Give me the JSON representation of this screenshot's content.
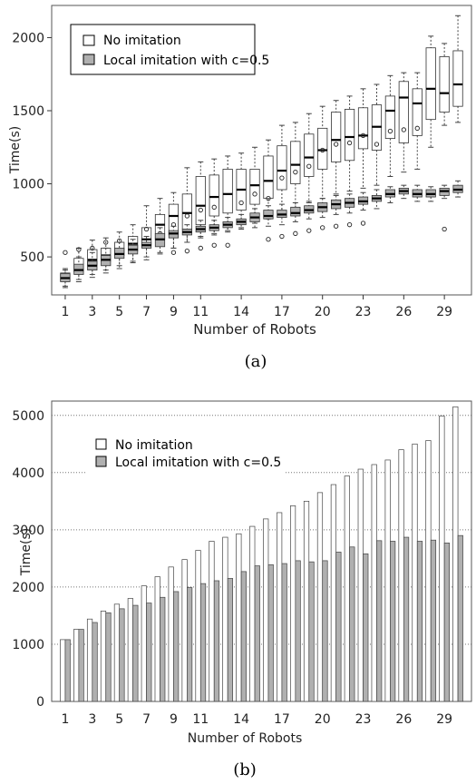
{
  "chart_data": [
    {
      "type": "box",
      "caption": "(a)",
      "xlabel": "Number of Robots",
      "ylabel": "Time(s)",
      "xlim": [
        0,
        31
      ],
      "ylim": [
        240,
        2220
      ],
      "x_ticks": [
        1,
        3,
        5,
        7,
        9,
        11,
        14,
        17,
        20,
        23,
        26,
        29
      ],
      "y_ticks": [
        500,
        1000,
        1500,
        2000
      ],
      "legend_position": "top-left",
      "series": [
        {
          "name": "No imitation",
          "color": "#ffffff",
          "boxes": [
            {
              "x": 1,
              "wlo": 300,
              "q1": 335,
              "med": 360,
              "q3": 390,
              "whi": 420
            },
            {
              "x": 2,
              "wlo": 345,
              "q1": 400,
              "med": 440,
              "q3": 490,
              "whi": 560
            },
            {
              "x": 3,
              "wlo": 380,
              "q1": 440,
              "med": 480,
              "q3": 550,
              "whi": 615
            },
            {
              "x": 4,
              "wlo": 410,
              "q1": 470,
              "med": 510,
              "q3": 560,
              "whi": 630
            },
            {
              "x": 5,
              "wlo": 440,
              "q1": 510,
              "med": 550,
              "q3": 600,
              "whi": 670
            },
            {
              "x": 6,
              "wlo": 470,
              "q1": 540,
              "med": 590,
              "q3": 640,
              "whi": 720
            },
            {
              "x": 7,
              "wlo": 500,
              "q1": 580,
              "med": 620,
              "q3": 700,
              "whi": 850
            },
            {
              "x": 8,
              "wlo": 530,
              "q1": 620,
              "med": 720,
              "q3": 790,
              "whi": 900
            },
            {
              "x": 9,
              "wlo": 560,
              "q1": 650,
              "med": 780,
              "q3": 860,
              "whi": 940
            },
            {
              "x": 10,
              "wlo": 600,
              "q1": 690,
              "med": 800,
              "q3": 930,
              "whi": 1110
            },
            {
              "x": 11,
              "wlo": 640,
              "q1": 720,
              "med": 850,
              "q3": 1050,
              "whi": 1150
            },
            {
              "x": 12,
              "wlo": 660,
              "q1": 780,
              "med": 910,
              "q3": 1060,
              "whi": 1170
            },
            {
              "x": 13,
              "wlo": 680,
              "q1": 800,
              "med": 930,
              "q3": 1100,
              "whi": 1190
            },
            {
              "x": 14,
              "wlo": 700,
              "q1": 820,
              "med": 960,
              "q3": 1100,
              "whi": 1210
            },
            {
              "x": 15,
              "wlo": 730,
              "q1": 860,
              "med": 990,
              "q3": 1100,
              "whi": 1250
            },
            {
              "x": 16,
              "wlo": 760,
              "q1": 900,
              "med": 1020,
              "q3": 1190,
              "whi": 1300
            },
            {
              "x": 17,
              "wlo": 800,
              "q1": 960,
              "med": 1090,
              "q3": 1260,
              "whi": 1400
            },
            {
              "x": 18,
              "wlo": 830,
              "q1": 1000,
              "med": 1130,
              "q3": 1290,
              "whi": 1420
            },
            {
              "x": 19,
              "wlo": 870,
              "q1": 1050,
              "med": 1180,
              "q3": 1340,
              "whi": 1480
            },
            {
              "x": 20,
              "wlo": 900,
              "q1": 1100,
              "med": 1230,
              "q3": 1380,
              "whi": 1530
            },
            {
              "x": 21,
              "wlo": 930,
              "q1": 1150,
              "med": 1300,
              "q3": 1490,
              "whi": 1570
            },
            {
              "x": 22,
              "wlo": 950,
              "q1": 1160,
              "med": 1320,
              "q3": 1510,
              "whi": 1600
            },
            {
              "x": 23,
              "wlo": 970,
              "q1": 1240,
              "med": 1330,
              "q3": 1520,
              "whi": 1650
            },
            {
              "x": 24,
              "wlo": 990,
              "q1": 1230,
              "med": 1390,
              "q3": 1540,
              "whi": 1680
            },
            {
              "x": 25,
              "wlo": 1050,
              "q1": 1310,
              "med": 1500,
              "q3": 1600,
              "whi": 1740
            },
            {
              "x": 26,
              "wlo": 1080,
              "q1": 1280,
              "med": 1590,
              "q3": 1700,
              "whi": 1760
            },
            {
              "x": 27,
              "wlo": 1100,
              "q1": 1330,
              "med": 1550,
              "q3": 1650,
              "whi": 1760
            },
            {
              "x": 28,
              "wlo": 1250,
              "q1": 1440,
              "med": 1650,
              "q3": 1930,
              "whi": 2010
            },
            {
              "x": 29,
              "wlo": 1400,
              "q1": 1490,
              "med": 1620,
              "q3": 1870,
              "whi": 1960
            },
            {
              "x": 30,
              "wlo": 1420,
              "q1": 1530,
              "med": 1680,
              "q3": 1910,
              "whi": 2150
            }
          ],
          "outliers": [
            [
              1,
              530
            ],
            [
              2,
              550
            ],
            [
              3,
              560
            ],
            [
              4,
              600
            ],
            [
              5,
              610
            ],
            [
              7,
              690
            ],
            [
              8,
              660
            ],
            [
              9,
              720
            ],
            [
              10,
              780
            ],
            [
              11,
              820
            ],
            [
              12,
              840
            ],
            [
              14,
              870
            ],
            [
              15,
              930
            ],
            [
              16,
              900
            ],
            [
              17,
              1040
            ],
            [
              18,
              1080
            ],
            [
              19,
              1120
            ],
            [
              20,
              1230
            ],
            [
              21,
              1270
            ],
            [
              22,
              1280
            ],
            [
              23,
              1330
            ],
            [
              24,
              1270
            ],
            [
              25,
              1360
            ],
            [
              26,
              1370
            ],
            [
              27,
              1380
            ]
          ]
        },
        {
          "name": "Local imitation with c=0.5",
          "color": "#b0b0b0",
          "boxes": [
            {
              "x": 1,
              "wlo": 290,
              "q1": 330,
              "med": 355,
              "q3": 385,
              "whi": 410
            },
            {
              "x": 2,
              "wlo": 330,
              "q1": 380,
              "med": 410,
              "q3": 450,
              "whi": 500
            },
            {
              "x": 3,
              "wlo": 360,
              "q1": 410,
              "med": 440,
              "q3": 470,
              "whi": 530
            },
            {
              "x": 4,
              "wlo": 390,
              "q1": 440,
              "med": 480,
              "q3": 510,
              "whi": 560
            },
            {
              "x": 5,
              "wlo": 420,
              "q1": 490,
              "med": 520,
              "q3": 560,
              "whi": 600
            },
            {
              "x": 6,
              "wlo": 460,
              "q1": 520,
              "med": 550,
              "q3": 580,
              "whi": 620
            },
            {
              "x": 7,
              "wlo": 480,
              "q1": 560,
              "med": 580,
              "q3": 600,
              "whi": 640
            },
            {
              "x": 8,
              "wlo": 520,
              "q1": 570,
              "med": 620,
              "q3": 660,
              "whi": 700
            },
            {
              "x": 9,
              "wlo": 560,
              "q1": 630,
              "med": 660,
              "q3": 680,
              "whi": 710
            },
            {
              "x": 10,
              "wlo": 600,
              "q1": 650,
              "med": 670,
              "q3": 690,
              "whi": 720
            },
            {
              "x": 11,
              "wlo": 630,
              "q1": 670,
              "med": 690,
              "q3": 710,
              "whi": 750
            },
            {
              "x": 12,
              "wlo": 650,
              "q1": 680,
              "med": 700,
              "q3": 720,
              "whi": 750
            },
            {
              "x": 13,
              "wlo": 670,
              "q1": 700,
              "med": 720,
              "q3": 740,
              "whi": 770
            },
            {
              "x": 14,
              "wlo": 690,
              "q1": 720,
              "med": 740,
              "q3": 760,
              "whi": 790
            },
            {
              "x": 15,
              "wlo": 700,
              "q1": 740,
              "med": 770,
              "q3": 800,
              "whi": 830
            },
            {
              "x": 16,
              "wlo": 710,
              "q1": 760,
              "med": 780,
              "q3": 820,
              "whi": 850
            },
            {
              "x": 17,
              "wlo": 720,
              "q1": 770,
              "med": 790,
              "q3": 820,
              "whi": 860
            },
            {
              "x": 18,
              "wlo": 740,
              "q1": 780,
              "med": 800,
              "q3": 840,
              "whi": 870
            },
            {
              "x": 19,
              "wlo": 760,
              "q1": 800,
              "med": 820,
              "q3": 850,
              "whi": 880
            },
            {
              "x": 20,
              "wlo": 770,
              "q1": 810,
              "med": 840,
              "q3": 870,
              "whi": 900
            },
            {
              "x": 21,
              "wlo": 790,
              "q1": 830,
              "med": 860,
              "q3": 890,
              "whi": 920
            },
            {
              "x": 22,
              "wlo": 800,
              "q1": 840,
              "med": 870,
              "q3": 900,
              "whi": 930
            },
            {
              "x": 23,
              "wlo": 820,
              "q1": 860,
              "med": 880,
              "q3": 910,
              "whi": 940
            },
            {
              "x": 24,
              "wlo": 830,
              "q1": 880,
              "med": 900,
              "q3": 920,
              "whi": 960
            },
            {
              "x": 25,
              "wlo": 870,
              "q1": 910,
              "med": 930,
              "q3": 960,
              "whi": 980
            },
            {
              "x": 26,
              "wlo": 900,
              "q1": 930,
              "med": 950,
              "q3": 970,
              "whi": 990
            },
            {
              "x": 27,
              "wlo": 880,
              "q1": 910,
              "med": 930,
              "q3": 960,
              "whi": 990
            },
            {
              "x": 28,
              "wlo": 880,
              "q1": 910,
              "med": 930,
              "q3": 960,
              "whi": 980
            },
            {
              "x": 29,
              "wlo": 900,
              "q1": 920,
              "med": 950,
              "q3": 970,
              "whi": 990
            },
            {
              "x": 30,
              "wlo": 910,
              "q1": 940,
              "med": 960,
              "q3": 990,
              "whi": 1020
            }
          ],
          "outliers": [
            [
              9,
              530
            ],
            [
              10,
              540
            ],
            [
              11,
              560
            ],
            [
              12,
              580
            ],
            [
              13,
              580
            ],
            [
              16,
              620
            ],
            [
              17,
              640
            ],
            [
              18,
              660
            ],
            [
              19,
              680
            ],
            [
              20,
              700
            ],
            [
              21,
              710
            ],
            [
              22,
              720
            ],
            [
              23,
              730
            ],
            [
              29,
              690
            ]
          ]
        }
      ]
    },
    {
      "type": "bar",
      "caption": "(b)",
      "xlabel": "Number of Robots",
      "ylabel": "Time(s)",
      "xlim": [
        0,
        31
      ],
      "ylim": [
        0,
        5250
      ],
      "x_ticks": [
        1,
        3,
        5,
        7,
        9,
        11,
        14,
        17,
        20,
        23,
        26,
        29
      ],
      "y_ticks": [
        0,
        1000,
        2000,
        3000,
        4000,
        5000
      ],
      "grid": "horizontal dotted",
      "legend_position": "top-left",
      "categories": [
        1,
        2,
        3,
        4,
        5,
        6,
        7,
        8,
        9,
        10,
        11,
        12,
        13,
        14,
        15,
        16,
        17,
        18,
        19,
        20,
        21,
        22,
        23,
        24,
        25,
        26,
        27,
        28,
        29,
        30
      ],
      "series": [
        {
          "name": "No imitation",
          "color": "#ffffff",
          "values": [
            1080,
            1260,
            1440,
            1580,
            1700,
            1800,
            2020,
            2180,
            2350,
            2480,
            2640,
            2800,
            2870,
            2930,
            3060,
            3190,
            3300,
            3420,
            3500,
            3650,
            3790,
            3940,
            4060,
            4140,
            4220,
            4400,
            4500,
            4560,
            4990,
            5150
          ]
        },
        {
          "name": "Local imitation with c=0.5",
          "color": "#b0b0b0",
          "values": [
            1080,
            1260,
            1380,
            1550,
            1620,
            1680,
            1720,
            1820,
            1920,
            1990,
            2060,
            2110,
            2150,
            2270,
            2370,
            2390,
            2410,
            2460,
            2440,
            2460,
            2610,
            2700,
            2580,
            2810,
            2800,
            2870,
            2800,
            2820,
            2770,
            2900
          ]
        }
      ]
    }
  ]
}
